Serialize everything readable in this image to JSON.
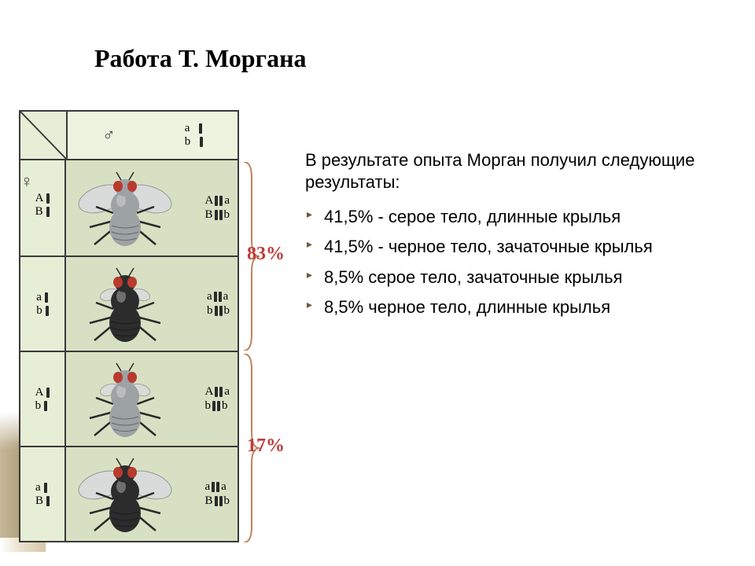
{
  "title": {
    "text": "Работа Т. Моргана",
    "fontsize_pt": 32
  },
  "intro": {
    "text": "В результате опыта Морган получил следующие результаты:",
    "fontsize_pt": 22
  },
  "bullets": {
    "fontsize_pt": 22,
    "items": [
      "41,5% - серое тело, длинные крылья",
      "41,5% - черное тело, зачаточные крылья",
      "8,5% серое тело, зачаточные крылья",
      "8,5% черное тело, длинные крылья"
    ]
  },
  "percent_labels": {
    "main": {
      "value": "83%",
      "color": "#c13a3a",
      "fontsize_pt": 22
    },
    "recomb": {
      "value": "17%",
      "color": "#c13a3a",
      "fontsize_pt": 22
    }
  },
  "cross_table": {
    "background": "#e7eed6",
    "border_color": "#3a3a3a",
    "cell_background": "#d8e0c3",
    "male_parent_genotype": {
      "line1": "a",
      "line2": "b"
    },
    "rows": [
      {
        "female_genotype": {
          "line1": "A",
          "line2": "B"
        },
        "offspring_genotype": {
          "l1a": "A",
          "l1b": "a",
          "l2a": "B",
          "l2b": "b"
        },
        "body_color": "#9da2a4",
        "long_wings": true
      },
      {
        "female_genotype": {
          "line1": "a",
          "line2": "b"
        },
        "offspring_genotype": {
          "l1a": "a",
          "l1b": "a",
          "l2a": "b",
          "l2b": "b"
        },
        "body_color": "#2c2c2c",
        "long_wings": false
      },
      {
        "female_genotype": {
          "line1": "A",
          "line2": "b"
        },
        "offspring_genotype": {
          "l1a": "A",
          "l1b": "a",
          "l2a": "b",
          "l2b": "b"
        },
        "body_color": "#9da2a4",
        "long_wings": false
      },
      {
        "female_genotype": {
          "line1": "a",
          "line2": "B"
        },
        "offspring_genotype": {
          "l1a": "a",
          "l1b": "a",
          "l2a": "B",
          "l2b": "b"
        },
        "body_color": "#2c2c2c",
        "long_wings": true
      }
    ]
  },
  "fly": {
    "eye_color": "#b93a2e",
    "wing_color": "#d8dbdf",
    "wing_stroke": "#888c91",
    "leg_color": "#2a2a2a",
    "highlight": "#ededef"
  },
  "brace_color": "#c0845a"
}
